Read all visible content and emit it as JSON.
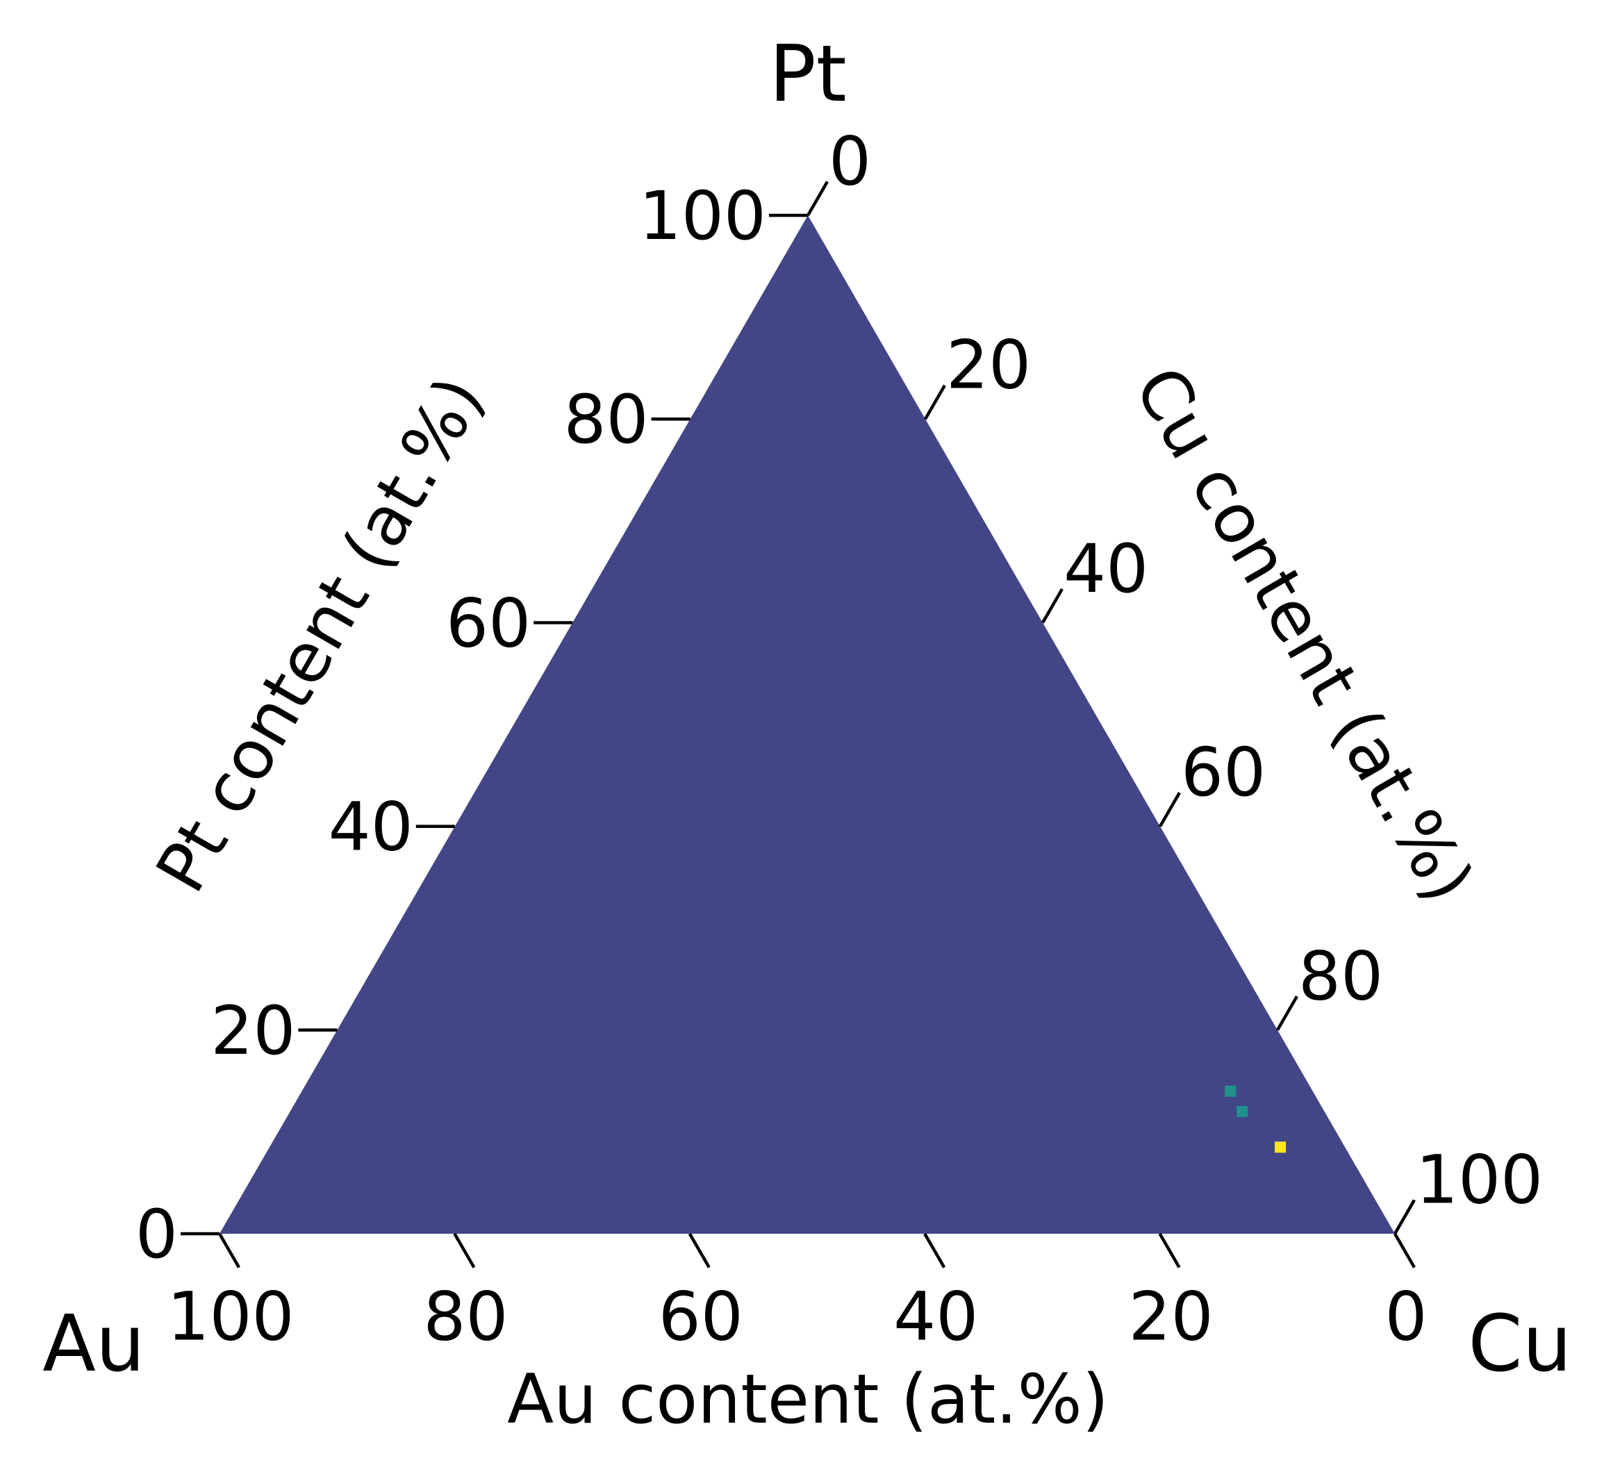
{
  "chart_data": {
    "type": "heatmap",
    "subtype": "ternary",
    "corners": {
      "top": "Pt",
      "left": "Au",
      "right": "Cu"
    },
    "axes": {
      "left": {
        "label": "Pt content (at.%)",
        "ticks": [
          "0",
          "20",
          "40",
          "60",
          "80",
          "100"
        ]
      },
      "right": {
        "label": "Cu content (at.%)",
        "ticks": [
          "0",
          "20",
          "40",
          "60",
          "80",
          "100"
        ]
      },
      "bottom": {
        "label": "Au content (at.%)",
        "ticks": [
          "100",
          "80",
          "60",
          "40",
          "20",
          "0"
        ]
      }
    },
    "range": [
      0,
      100
    ],
    "background_color": "#424686",
    "highlights": [
      {
        "Pt": 14,
        "Cu": 79,
        "Au": 7,
        "color": "#21918c"
      },
      {
        "Pt": 12,
        "Cu": 81,
        "Au": 7,
        "color": "#21918c"
      },
      {
        "Pt": 8.5,
        "Cu": 86,
        "Au": 5.5,
        "color": "#fde725"
      }
    ]
  }
}
